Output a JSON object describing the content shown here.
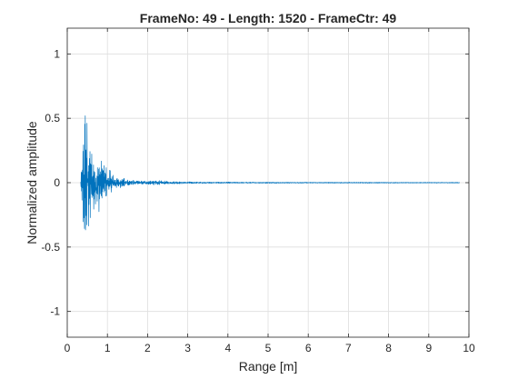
{
  "chart_data": {
    "type": "line",
    "title": "FrameNo: 49 - Length: 1520 - FrameCtr: 49",
    "xlabel": "Range [m]",
    "ylabel": "Normalized amplitude",
    "xlim": [
      0,
      10
    ],
    "ylim": [
      -1.2,
      1.2
    ],
    "grid": true,
    "xticks": [
      "0",
      "1",
      "2",
      "3",
      "4",
      "5",
      "6",
      "7",
      "8",
      "9",
      "10"
    ],
    "yticks": [
      "1",
      "0.5",
      "0",
      "-0.5",
      "-1"
    ],
    "series": [
      {
        "color": "#0072BD",
        "x_start": 0.33,
        "x_end": 9.77,
        "n_points": 1520,
        "envelope_x": [
          0.33,
          0.36,
          0.4,
          0.43,
          0.46,
          0.5,
          0.55,
          0.6,
          0.65,
          0.7,
          0.75,
          0.8,
          0.85,
          0.9,
          1.0,
          1.05,
          1.1,
          1.15,
          1.25,
          1.35,
          1.5,
          1.65,
          1.8,
          2.0,
          2.2,
          2.35,
          2.6,
          3.0,
          3.5,
          4.5,
          5.5,
          7.0,
          8.5,
          9.77
        ],
        "envelope_upper": [
          0.03,
          0.12,
          0.38,
          0.55,
          0.74,
          0.48,
          0.36,
          0.3,
          0.22,
          0.18,
          0.14,
          0.2,
          0.25,
          0.18,
          0.1,
          0.12,
          0.09,
          0.06,
          0.05,
          0.04,
          0.03,
          0.02,
          0.015,
          0.015,
          0.02,
          0.015,
          0.01,
          0.008,
          0.006,
          0.005,
          0.004,
          0.004,
          0.003,
          0.003
        ],
        "envelope_lower": [
          -0.03,
          -0.2,
          -0.45,
          -0.55,
          -0.56,
          -0.45,
          -0.35,
          -0.33,
          -0.28,
          -0.22,
          -0.18,
          -0.25,
          -0.22,
          -0.16,
          -0.1,
          -0.11,
          -0.08,
          -0.06,
          -0.05,
          -0.04,
          -0.03,
          -0.02,
          -0.015,
          -0.015,
          -0.02,
          -0.015,
          -0.01,
          -0.008,
          -0.006,
          -0.005,
          -0.004,
          -0.004,
          -0.003,
          -0.003
        ]
      }
    ]
  }
}
